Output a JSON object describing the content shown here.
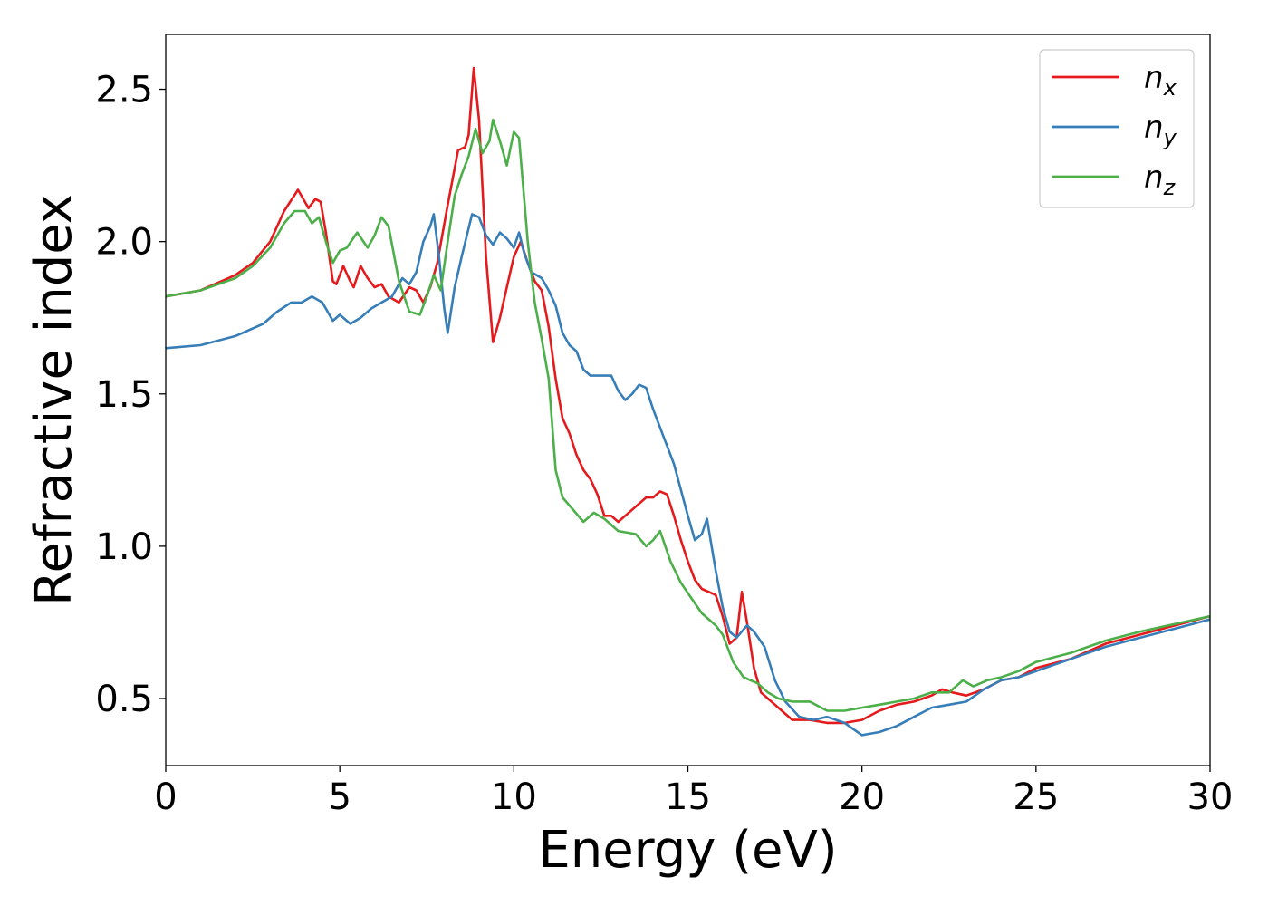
{
  "chart_data": {
    "type": "line",
    "xlabel": "Energy (eV)",
    "ylabel": "Refractive index",
    "xlim": [
      0,
      30
    ],
    "ylim": [
      0.28,
      2.68
    ],
    "xticks": [
      0,
      5,
      10,
      15,
      20,
      25,
      30
    ],
    "xtick_labels": [
      "0",
      "5",
      "10",
      "15",
      "20",
      "25",
      "30"
    ],
    "yticks": [
      0.5,
      1.0,
      1.5,
      2.0,
      2.5
    ],
    "ytick_labels": [
      "0.5",
      "1.0",
      "1.5",
      "2.0",
      "2.5"
    ],
    "grid": false,
    "legend_position": "top-right",
    "series": [
      {
        "name": "n",
        "subscript": "x",
        "color": "#e41a1c",
        "points": [
          [
            0,
            1.82
          ],
          [
            1,
            1.84
          ],
          [
            2,
            1.89
          ],
          [
            2.5,
            1.93
          ],
          [
            3,
            2.0
          ],
          [
            3.4,
            2.1
          ],
          [
            3.8,
            2.17
          ],
          [
            4.0,
            2.13
          ],
          [
            4.1,
            2.11
          ],
          [
            4.3,
            2.14
          ],
          [
            4.45,
            2.13
          ],
          [
            4.6,
            2.03
          ],
          [
            4.8,
            1.87
          ],
          [
            4.9,
            1.86
          ],
          [
            5.1,
            1.92
          ],
          [
            5.3,
            1.87
          ],
          [
            5.4,
            1.85
          ],
          [
            5.6,
            1.92
          ],
          [
            5.8,
            1.88
          ],
          [
            6.0,
            1.85
          ],
          [
            6.2,
            1.86
          ],
          [
            6.4,
            1.82
          ],
          [
            6.7,
            1.8
          ],
          [
            7.0,
            1.85
          ],
          [
            7.2,
            1.84
          ],
          [
            7.4,
            1.8
          ],
          [
            7.6,
            1.85
          ],
          [
            7.8,
            1.93
          ],
          [
            8.1,
            2.12
          ],
          [
            8.4,
            2.3
          ],
          [
            8.6,
            2.31
          ],
          [
            8.7,
            2.35
          ],
          [
            8.85,
            2.57
          ],
          [
            9.0,
            2.4
          ],
          [
            9.2,
            1.95
          ],
          [
            9.4,
            1.67
          ],
          [
            9.6,
            1.75
          ],
          [
            9.8,
            1.85
          ],
          [
            10.0,
            1.95
          ],
          [
            10.2,
            2.0
          ],
          [
            10.4,
            1.93
          ],
          [
            10.6,
            1.87
          ],
          [
            10.8,
            1.84
          ],
          [
            11.0,
            1.72
          ],
          [
            11.2,
            1.55
          ],
          [
            11.4,
            1.42
          ],
          [
            11.6,
            1.37
          ],
          [
            11.8,
            1.3
          ],
          [
            12.0,
            1.25
          ],
          [
            12.2,
            1.22
          ],
          [
            12.4,
            1.17
          ],
          [
            12.6,
            1.1
          ],
          [
            12.8,
            1.1
          ],
          [
            13.0,
            1.08
          ],
          [
            13.2,
            1.1
          ],
          [
            13.5,
            1.13
          ],
          [
            13.8,
            1.16
          ],
          [
            14.0,
            1.16
          ],
          [
            14.2,
            1.18
          ],
          [
            14.4,
            1.17
          ],
          [
            14.6,
            1.1
          ],
          [
            14.8,
            1.02
          ],
          [
            15.0,
            0.95
          ],
          [
            15.2,
            0.89
          ],
          [
            15.4,
            0.86
          ],
          [
            15.6,
            0.85
          ],
          [
            15.8,
            0.84
          ],
          [
            16.0,
            0.77
          ],
          [
            16.2,
            0.68
          ],
          [
            16.4,
            0.7
          ],
          [
            16.55,
            0.85
          ],
          [
            16.7,
            0.75
          ],
          [
            16.9,
            0.6
          ],
          [
            17.1,
            0.52
          ],
          [
            17.5,
            0.48
          ],
          [
            18.0,
            0.43
          ],
          [
            18.5,
            0.43
          ],
          [
            19.0,
            0.42
          ],
          [
            19.5,
            0.42
          ],
          [
            20.0,
            0.43
          ],
          [
            20.5,
            0.46
          ],
          [
            21.0,
            0.48
          ],
          [
            21.5,
            0.49
          ],
          [
            22.0,
            0.51
          ],
          [
            22.3,
            0.53
          ],
          [
            22.6,
            0.52
          ],
          [
            23.0,
            0.51
          ],
          [
            23.5,
            0.53
          ],
          [
            24.0,
            0.56
          ],
          [
            24.5,
            0.57
          ],
          [
            25.0,
            0.6
          ],
          [
            26.0,
            0.63
          ],
          [
            27.0,
            0.68
          ],
          [
            28.0,
            0.71
          ],
          [
            29.0,
            0.74
          ],
          [
            30.0,
            0.77
          ]
        ]
      },
      {
        "name": "n",
        "subscript": "y",
        "color": "#377eb8",
        "points": [
          [
            0,
            1.65
          ],
          [
            1,
            1.66
          ],
          [
            2,
            1.69
          ],
          [
            2.8,
            1.73
          ],
          [
            3.2,
            1.77
          ],
          [
            3.6,
            1.8
          ],
          [
            3.9,
            1.8
          ],
          [
            4.2,
            1.82
          ],
          [
            4.5,
            1.8
          ],
          [
            4.8,
            1.74
          ],
          [
            5.0,
            1.76
          ],
          [
            5.3,
            1.73
          ],
          [
            5.6,
            1.75
          ],
          [
            5.9,
            1.78
          ],
          [
            6.2,
            1.8
          ],
          [
            6.5,
            1.82
          ],
          [
            6.8,
            1.88
          ],
          [
            7.0,
            1.86
          ],
          [
            7.2,
            1.9
          ],
          [
            7.4,
            2.0
          ],
          [
            7.6,
            2.05
          ],
          [
            7.7,
            2.09
          ],
          [
            7.85,
            1.95
          ],
          [
            8.0,
            1.78
          ],
          [
            8.1,
            1.7
          ],
          [
            8.3,
            1.85
          ],
          [
            8.5,
            1.95
          ],
          [
            8.8,
            2.09
          ],
          [
            9.0,
            2.08
          ],
          [
            9.2,
            2.02
          ],
          [
            9.4,
            1.99
          ],
          [
            9.6,
            2.03
          ],
          [
            9.8,
            2.01
          ],
          [
            10.0,
            1.98
          ],
          [
            10.15,
            2.03
          ],
          [
            10.3,
            1.96
          ],
          [
            10.5,
            1.9
          ],
          [
            10.8,
            1.88
          ],
          [
            11.0,
            1.84
          ],
          [
            11.2,
            1.79
          ],
          [
            11.4,
            1.7
          ],
          [
            11.6,
            1.66
          ],
          [
            11.8,
            1.64
          ],
          [
            12.0,
            1.58
          ],
          [
            12.2,
            1.56
          ],
          [
            12.5,
            1.56
          ],
          [
            12.8,
            1.56
          ],
          [
            13.0,
            1.51
          ],
          [
            13.2,
            1.48
          ],
          [
            13.4,
            1.5
          ],
          [
            13.6,
            1.53
          ],
          [
            13.8,
            1.52
          ],
          [
            14.0,
            1.45
          ],
          [
            14.3,
            1.36
          ],
          [
            14.6,
            1.27
          ],
          [
            15.0,
            1.1
          ],
          [
            15.2,
            1.02
          ],
          [
            15.4,
            1.04
          ],
          [
            15.55,
            1.09
          ],
          [
            15.8,
            0.92
          ],
          [
            16.0,
            0.8
          ],
          [
            16.2,
            0.72
          ],
          [
            16.4,
            0.7
          ],
          [
            16.7,
            0.74
          ],
          [
            16.9,
            0.72
          ],
          [
            17.2,
            0.67
          ],
          [
            17.5,
            0.56
          ],
          [
            17.8,
            0.49
          ],
          [
            18.2,
            0.44
          ],
          [
            18.6,
            0.43
          ],
          [
            19.0,
            0.44
          ],
          [
            19.5,
            0.42
          ],
          [
            20.0,
            0.38
          ],
          [
            20.5,
            0.39
          ],
          [
            21.0,
            0.41
          ],
          [
            21.5,
            0.44
          ],
          [
            22.0,
            0.47
          ],
          [
            22.5,
            0.48
          ],
          [
            23.0,
            0.49
          ],
          [
            23.5,
            0.53
          ],
          [
            24.0,
            0.56
          ],
          [
            24.5,
            0.57
          ],
          [
            25.0,
            0.59
          ],
          [
            26.0,
            0.63
          ],
          [
            27.0,
            0.67
          ],
          [
            28.0,
            0.7
          ],
          [
            29.0,
            0.73
          ],
          [
            30.0,
            0.76
          ]
        ]
      },
      {
        "name": "n",
        "subscript": "z",
        "color": "#4daf4a",
        "points": [
          [
            0,
            1.82
          ],
          [
            1,
            1.84
          ],
          [
            2,
            1.88
          ],
          [
            2.5,
            1.92
          ],
          [
            3,
            1.98
          ],
          [
            3.4,
            2.06
          ],
          [
            3.7,
            2.1
          ],
          [
            4.0,
            2.1
          ],
          [
            4.2,
            2.06
          ],
          [
            4.4,
            2.08
          ],
          [
            4.6,
            2.0
          ],
          [
            4.8,
            1.93
          ],
          [
            5.0,
            1.97
          ],
          [
            5.2,
            1.98
          ],
          [
            5.5,
            2.03
          ],
          [
            5.8,
            1.98
          ],
          [
            6.0,
            2.02
          ],
          [
            6.2,
            2.08
          ],
          [
            6.4,
            2.05
          ],
          [
            6.7,
            1.87
          ],
          [
            7.0,
            1.77
          ],
          [
            7.3,
            1.76
          ],
          [
            7.5,
            1.82
          ],
          [
            7.7,
            1.89
          ],
          [
            7.9,
            1.84
          ],
          [
            8.1,
            2.0
          ],
          [
            8.3,
            2.15
          ],
          [
            8.5,
            2.22
          ],
          [
            8.7,
            2.28
          ],
          [
            8.9,
            2.37
          ],
          [
            9.1,
            2.29
          ],
          [
            9.3,
            2.33
          ],
          [
            9.4,
            2.4
          ],
          [
            9.6,
            2.33
          ],
          [
            9.8,
            2.25
          ],
          [
            10.0,
            2.36
          ],
          [
            10.15,
            2.34
          ],
          [
            10.4,
            2.0
          ],
          [
            10.6,
            1.8
          ],
          [
            10.8,
            1.68
          ],
          [
            11.0,
            1.55
          ],
          [
            11.2,
            1.25
          ],
          [
            11.4,
            1.16
          ],
          [
            11.7,
            1.12
          ],
          [
            12.0,
            1.08
          ],
          [
            12.3,
            1.11
          ],
          [
            12.6,
            1.09
          ],
          [
            13.0,
            1.05
          ],
          [
            13.5,
            1.04
          ],
          [
            13.8,
            1.0
          ],
          [
            14.0,
            1.02
          ],
          [
            14.2,
            1.05
          ],
          [
            14.5,
            0.95
          ],
          [
            14.8,
            0.88
          ],
          [
            15.1,
            0.83
          ],
          [
            15.4,
            0.78
          ],
          [
            15.8,
            0.74
          ],
          [
            16.0,
            0.71
          ],
          [
            16.3,
            0.62
          ],
          [
            16.6,
            0.57
          ],
          [
            17.0,
            0.55
          ],
          [
            17.3,
            0.52
          ],
          [
            17.6,
            0.5
          ],
          [
            18.0,
            0.49
          ],
          [
            18.5,
            0.49
          ],
          [
            19.0,
            0.46
          ],
          [
            19.5,
            0.46
          ],
          [
            20.0,
            0.47
          ],
          [
            20.5,
            0.48
          ],
          [
            21.0,
            0.49
          ],
          [
            21.5,
            0.5
          ],
          [
            22.0,
            0.52
          ],
          [
            22.5,
            0.52
          ],
          [
            22.9,
            0.56
          ],
          [
            23.2,
            0.54
          ],
          [
            23.6,
            0.56
          ],
          [
            24.0,
            0.57
          ],
          [
            24.5,
            0.59
          ],
          [
            25.0,
            0.62
          ],
          [
            26.0,
            0.65
          ],
          [
            27.0,
            0.69
          ],
          [
            28.0,
            0.72
          ],
          [
            29.0,
            0.745
          ],
          [
            30.0,
            0.77
          ]
        ]
      }
    ]
  }
}
